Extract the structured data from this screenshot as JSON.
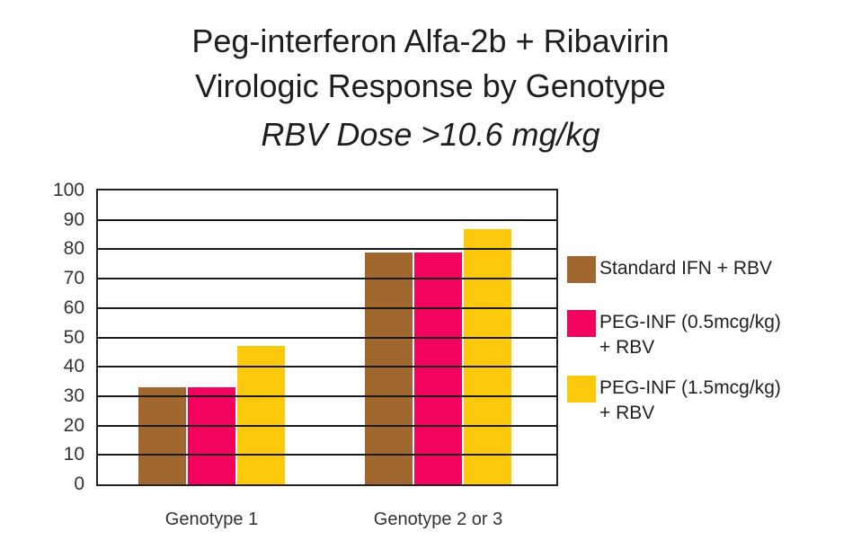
{
  "chart_data": {
    "type": "bar",
    "title": "Peg-interferon Alfa-2b + Ribavirin",
    "subtitle": "Virologic Response by Genotype",
    "subtitle2": "RBV Dose >10.6 mg/kg",
    "xlabel": "",
    "ylabel": "",
    "ylim": [
      0,
      100
    ],
    "yticks": [
      0,
      10,
      20,
      30,
      40,
      50,
      60,
      70,
      80,
      90,
      100
    ],
    "grid": true,
    "legend_position": "right",
    "categories": [
      "Genotype 1",
      "Genotype 2 or 3"
    ],
    "series": [
      {
        "name": "Standard IFN + RBV",
        "color": "#a0672f",
        "values": [
          33,
          79
        ]
      },
      {
        "name": "PEG-INF (0.5mcg/kg) + RBV",
        "color": "#f2045e",
        "values": [
          33,
          79
        ]
      },
      {
        "name": "PEG-INF (1.5mcg/kg) + RBV",
        "color": "#fdc90c",
        "values": [
          47,
          87
        ]
      }
    ]
  },
  "titles": {
    "line1": "Peg-interferon Alfa-2b + Ribavirin",
    "line2": "Virologic Response by Genotype",
    "line3": "RBV Dose >10.6 mg/kg"
  },
  "legend": [
    {
      "label": "Standard IFN + RBV",
      "color": "#a0672f"
    },
    {
      "label": "PEG-INF (0.5mcg/kg)\n+ RBV",
      "color": "#f2045e"
    },
    {
      "label": "PEG-INF (1.5mcg/kg)\n+ RBV",
      "color": "#fdc90c"
    }
  ]
}
